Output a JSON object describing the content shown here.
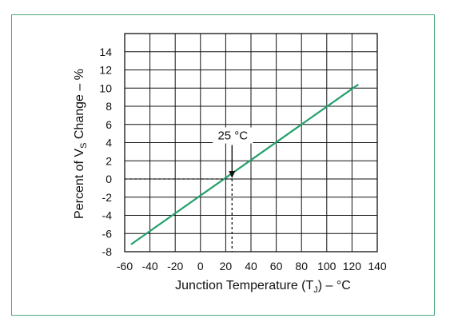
{
  "chart_data": {
    "type": "line",
    "xlabel": "Junction Temperature (T",
    "xlabel_sub": "J",
    "xlabel_tail": ") – °C",
    "ylabel_pre": "Percent of V",
    "ylabel_sub": "S",
    "ylabel_post": " Change – %",
    "xlim": [
      -60,
      140
    ],
    "ylim": [
      -8,
      16
    ],
    "xticks": [
      -60,
      -40,
      -20,
      0,
      20,
      40,
      60,
      80,
      100,
      120,
      140
    ],
    "yticks": [
      14,
      12,
      10,
      8,
      6,
      4,
      2,
      0,
      -2,
      -4,
      -6,
      -8
    ],
    "grid": true,
    "series": [
      {
        "x": [
          -55,
          125
        ],
        "y": [
          -7.2,
          10.4
        ],
        "color": "#23a06b"
      }
    ],
    "annotation": {
      "text": "25 °C",
      "x": 25,
      "y": 0
    }
  },
  "colors": {
    "frame": "#4aa77c",
    "line": "#23a06b",
    "grid": "#111111"
  }
}
